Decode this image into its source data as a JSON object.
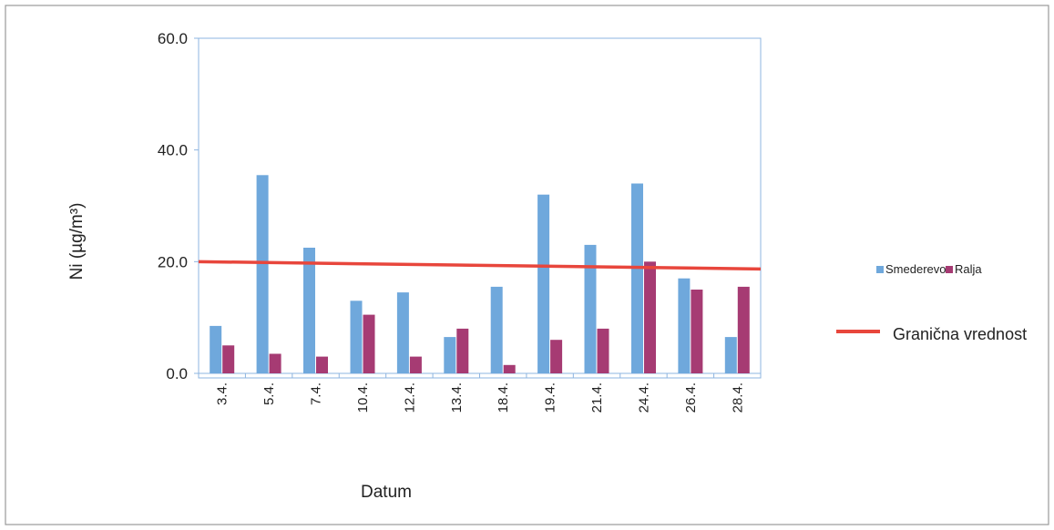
{
  "chart_data": {
    "type": "bar",
    "xlabel": "Datum",
    "ylabel": "Ni (µg/m³)",
    "ylim": [
      0,
      60
    ],
    "y_ticks": [
      "0.0",
      "20.0",
      "40.0",
      "60.0"
    ],
    "y_tick_values": [
      0,
      20,
      40,
      60
    ],
    "categories": [
      "3.4.",
      "5.4.",
      "7.4.",
      "10.4.",
      "12.4.",
      "13.4.",
      "18.4.",
      "19.4.",
      "21.4.",
      "24.4.",
      "26.4.",
      "28.4."
    ],
    "series": [
      {
        "name": "Smederevo",
        "color": "#6fa8dc",
        "values": [
          8.5,
          35.5,
          22.5,
          13.0,
          14.5,
          6.5,
          15.5,
          32.0,
          23.0,
          34.0,
          17.0,
          6.5
        ]
      },
      {
        "name": "Ralja",
        "color": "#a63b73",
        "values": [
          5.0,
          3.5,
          3.0,
          10.5,
          3.0,
          8.0,
          1.5,
          6.0,
          8.0,
          20.0,
          15.0,
          15.5
        ]
      }
    ],
    "reference_line": {
      "name": "Granična vrednost",
      "value": 20.0,
      "color": "#e8463c"
    },
    "grid": false,
    "legend": "right"
  }
}
